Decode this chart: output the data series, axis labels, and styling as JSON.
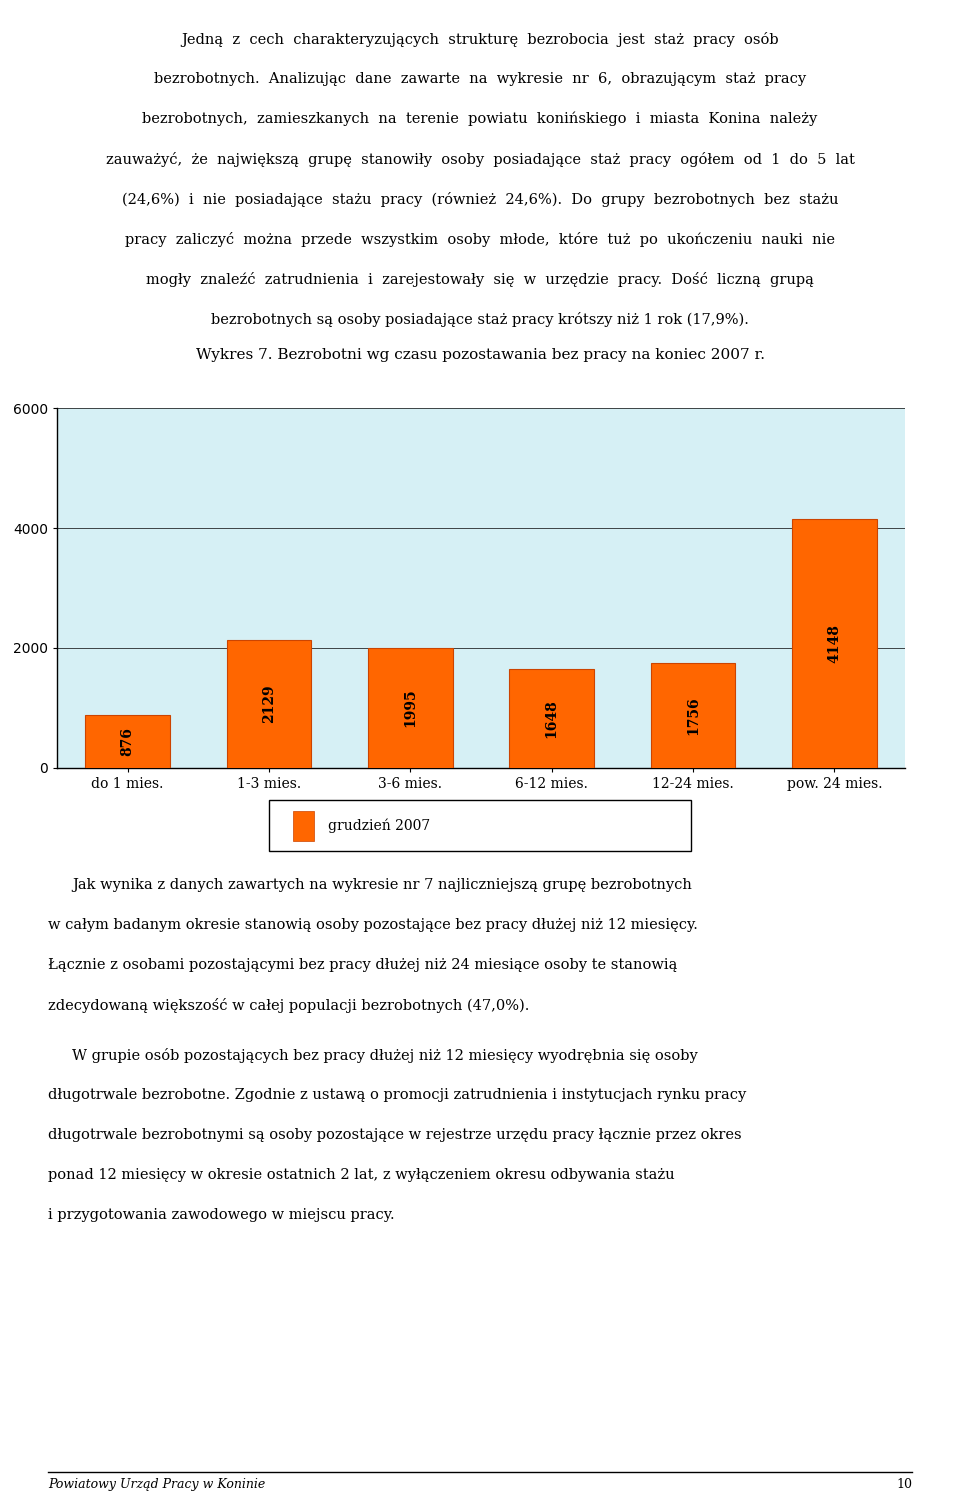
{
  "page_width": 9.6,
  "page_height": 15.09,
  "background_color": "#ffffff",
  "text_color": "#000000",
  "bar_color": "#FF6600",
  "chart_bg_color": "#D6F0F5",
  "chart_border_color": "#000000",
  "categories": [
    "do 1 mies.",
    "1-3 mies.",
    "3-6 mies.",
    "6-12 mies.",
    "12-24 mies.",
    "pow. 24 mies."
  ],
  "values": [
    876,
    2129,
    1995,
    1648,
    1756,
    4148
  ],
  "ylim": [
    0,
    6000
  ],
  "yticks": [
    0,
    2000,
    4000,
    6000
  ],
  "chart_title": "Wykres 7. Bezrobotni wg czasu pozostawania bez pracy na koniec 2007 r.",
  "legend_label": "grudzień 2007",
  "footer_text": "Powiatowy Urząd Pracy w Koninie",
  "footer_page": "10",
  "para1_lines": [
    "Jedną  z  cech  charakteryzujących  strukturę  bezrobocia  jest  staż  pracy  osób",
    "bezrobotnych.  Analizując  dane  zawarte  na  wykresie  nr  6,  obrazującym  staż  pracy",
    "bezrobotnych,  zamieszkanych  na  terenie  powiatu  konińskiego  i  miasta  Konina  należy",
    "zauważyć,  że  największą  grupę  stanowiły  osoby  posiadające  staż  pracy  ogółem  od  1  do  5  lat",
    "(24,6%)  i  nie  posiadające  stażu  pracy  (również  24,6%).  Do  grupy  bezrobotnych  bez  stażu",
    "pracy  zaliczyć  można  przede  wszystkim  osoby  młode,  które  tuż  po  ukończeniu  nauki  nie",
    "mogły  znaleźć  zatrudnienia  i  zarejestowały  się  w  urzędzie  pracy.  Dość  liczną  grupą",
    "bezrobotnych są osoby posiadające staż pracy krótszy niż 1 rok (17,9%)."
  ],
  "para2_lines": [
    "Jak wynika z danych zawartych na wykresie nr 7 najliczniejszą grupę bezrobotnych",
    "w całym badanym okresie stanowią osoby pozostające bez pracy dłużej niż 12 miesięcy.",
    "Łącznie z osobami pozostającymi bez pracy dłużej niż 24 miesiące osoby te stanowią",
    "zdecydowaną większość w całej populacji bezrobotnych (47,0%)."
  ],
  "para3_lines": [
    "W grupie osób pozostających bez pracy dłużej niż 12 miesięcy wyodrębnia się osoby",
    "długotrwale bezrobotne. Zgodnie z ustawą o promocji zatrudnienia i instytucjach rynku pracy",
    "długotrwale bezrobotnymi są osoby pozostające w rejestrze urzędu pracy łącznie przez okres",
    "ponad 12 miesięcy w okresie ostatnich 2 lat, z wyłączeniem okresu odbywania stażu",
    "i przygotowania zawodowego w miejscu pracy."
  ]
}
